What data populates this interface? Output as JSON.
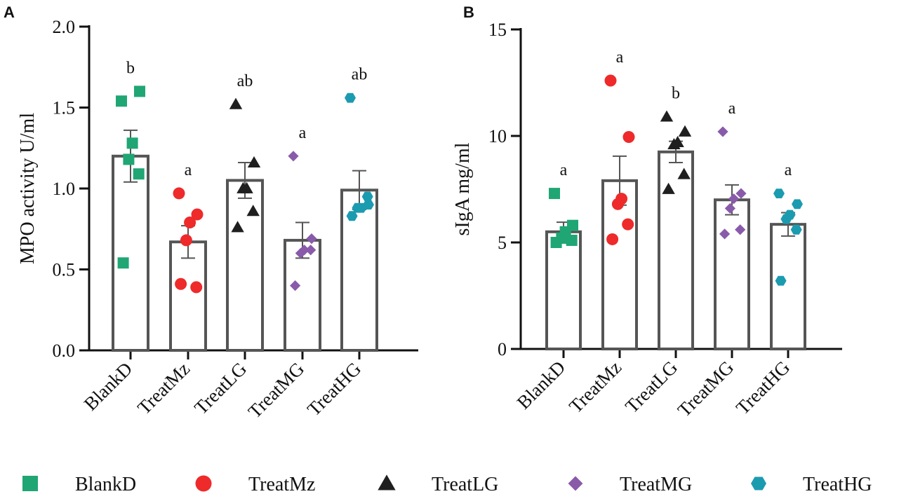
{
  "colors": {
    "BlankD": "#1fa674",
    "TreatMz": "#ee2a2a",
    "TreatLG": "#1f1f1f",
    "TreatMG": "#8a5aaa",
    "TreatHG": "#1b9bb0",
    "bar_stroke": "#555555",
    "axis": "#111111"
  },
  "legend": [
    {
      "label": "BlankD",
      "marker": "square"
    },
    {
      "label": "TreatMz",
      "marker": "circle"
    },
    {
      "label": "TreatLG",
      "marker": "triangle"
    },
    {
      "label": "TreatMG",
      "marker": "diamond"
    },
    {
      "label": "TreatHG",
      "marker": "hexagon"
    }
  ],
  "chart_data": [
    {
      "panel": "A",
      "type": "bar",
      "ylabel": "MPO activity  U/ml",
      "ylim": [
        0,
        2.0
      ],
      "yticks": [
        "0.0",
        "0.5",
        "1.0",
        "1.5",
        "2.0"
      ],
      "yticks_values": [
        0,
        0.5,
        1.0,
        1.5,
        2.0
      ],
      "categories": [
        "BlankD",
        "TreatMz",
        "TreatLG",
        "TreatMG",
        "TreatHG"
      ],
      "means": [
        1.2,
        0.67,
        1.05,
        0.68,
        0.99
      ],
      "sem": [
        0.16,
        0.1,
        0.11,
        0.11,
        0.12
      ],
      "significance": [
        "b",
        "a",
        "ab",
        "a",
        "ab"
      ],
      "points": [
        [
          1.54,
          1.6,
          1.28,
          1.18,
          1.09,
          0.54
        ],
        [
          0.97,
          0.84,
          0.79,
          0.68,
          0.39,
          0.41
        ],
        [
          1.52,
          1.16,
          1.0,
          1.0,
          0.86,
          0.76
        ],
        [
          1.2,
          0.69,
          0.62,
          0.6,
          0.62,
          0.4
        ],
        [
          1.56,
          0.9,
          0.88,
          0.88,
          0.95,
          0.83
        ]
      ]
    },
    {
      "panel": "B",
      "type": "bar",
      "ylabel": "sIgA mg/ml",
      "ylim": [
        0,
        15
      ],
      "yticks": [
        "0",
        "5",
        "10",
        "15"
      ],
      "yticks_values": [
        0,
        5,
        10,
        15
      ],
      "categories": [
        "BlankD",
        "TreatMz",
        "TreatLG",
        "TreatMG",
        "TreatHG"
      ],
      "means": [
        5.5,
        7.9,
        9.25,
        7.0,
        5.85
      ],
      "sem": [
        0.45,
        1.15,
        0.5,
        0.7,
        0.55
      ],
      "significance": [
        "a",
        "a",
        "b",
        "a",
        "a"
      ],
      "points": [
        [
          7.3,
          5.8,
          5.5,
          5.2,
          5.1,
          5.0
        ],
        [
          12.6,
          9.95,
          7.05,
          6.8,
          5.85,
          5.15
        ],
        [
          10.9,
          10.2,
          9.7,
          9.6,
          8.2,
          7.5
        ],
        [
          10.2,
          7.3,
          7.05,
          6.6,
          5.6,
          5.4
        ],
        [
          7.3,
          6.8,
          6.3,
          6.1,
          5.6,
          3.2
        ]
      ]
    }
  ]
}
